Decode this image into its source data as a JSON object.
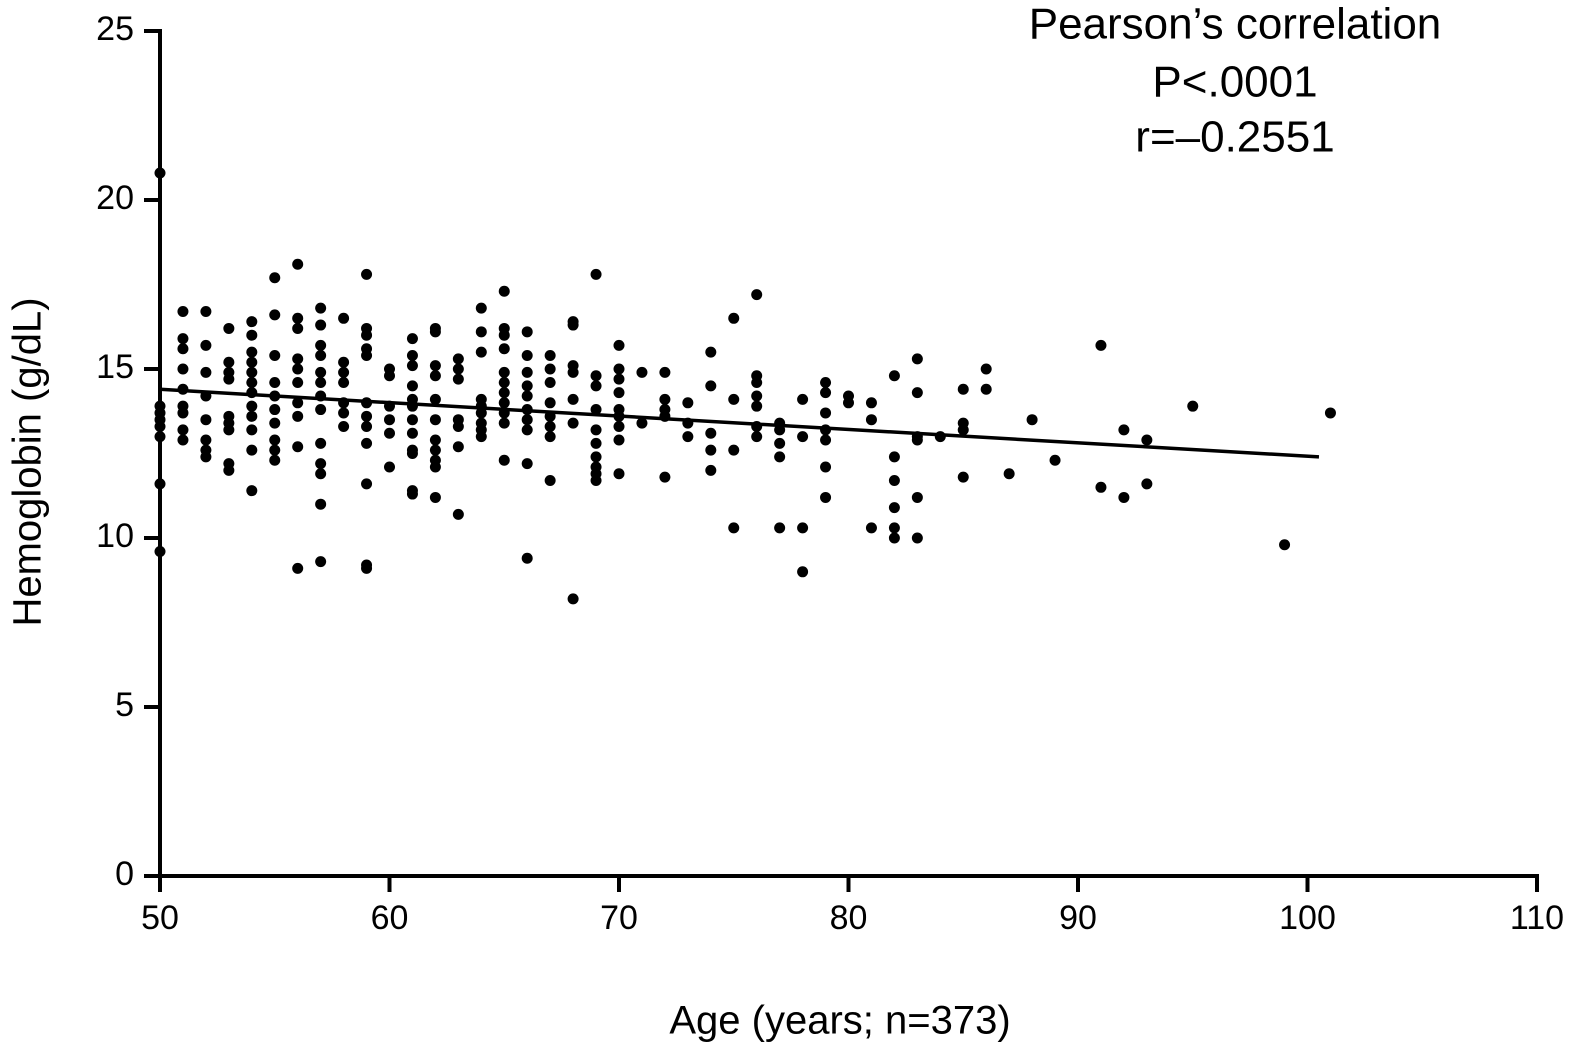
{
  "chart_data": {
    "type": "scatter",
    "annotations": [
      "Pearson’s correlation",
      "P<.0001",
      "r=–0.2551"
    ],
    "x_label": "Age (years; n=373)",
    "y_label": "Hemoglobin (g/dL)",
    "xlim": [
      50,
      110
    ],
    "xticks": [
      50,
      60,
      70,
      80,
      90,
      100,
      110
    ],
    "ylim": [
      0,
      25
    ],
    "yticks": [
      0,
      5,
      10,
      15,
      20,
      25
    ],
    "color": "#000000",
    "series": [
      {
        "x": [
          50,
          50,
          50,
          50,
          50,
          50,
          50,
          50,
          51,
          51,
          51,
          51,
          51,
          51,
          51,
          51,
          51,
          52,
          52,
          52,
          52,
          52,
          52,
          52,
          52,
          53,
          53,
          53,
          53,
          53,
          53,
          53,
          53,
          53,
          54,
          54,
          54,
          54,
          54,
          54,
          54,
          54,
          54,
          54,
          54,
          54,
          55,
          55,
          55,
          55,
          55,
          55,
          55,
          55,
          55,
          55,
          56,
          56,
          56,
          56,
          56,
          56,
          56,
          56,
          56,
          56,
          57,
          57,
          57,
          57,
          57,
          57,
          57,
          57,
          57,
          57,
          57,
          57,
          57,
          58,
          58,
          58,
          58,
          58,
          58,
          58,
          59,
          59,
          59,
          59,
          59,
          59,
          59,
          59,
          59,
          59,
          59,
          59,
          60,
          60,
          60,
          60,
          60,
          60,
          61,
          61,
          61,
          61,
          61,
          61,
          61,
          61,
          61,
          61,
          61,
          61,
          62,
          62,
          62,
          62,
          62,
          62,
          62,
          62,
          62,
          62,
          62,
          63,
          63,
          63,
          63,
          63,
          63,
          63,
          64,
          64,
          64,
          64,
          64,
          64,
          64,
          64,
          64,
          65,
          65,
          65,
          65,
          65,
          65,
          65,
          65,
          65,
          65,
          65,
          66,
          66,
          66,
          66,
          66,
          66,
          66,
          66,
          66,
          66,
          67,
          67,
          67,
          67,
          67,
          67,
          67,
          67,
          68,
          68,
          68,
          68,
          68,
          68,
          68,
          69,
          69,
          69,
          69,
          69,
          69,
          69,
          69,
          69,
          69,
          70,
          70,
          70,
          70,
          70,
          70,
          70,
          70,
          70,
          71,
          71,
          72,
          72,
          72,
          72,
          72,
          73,
          73,
          73,
          74,
          74,
          74,
          74,
          74,
          75,
          75,
          75,
          75,
          76,
          76,
          76,
          76,
          76,
          76,
          76,
          77,
          77,
          77,
          77,
          77,
          78,
          78,
          78,
          78,
          79,
          79,
          79,
          79,
          79,
          79,
          79,
          80,
          80,
          81,
          81,
          81,
          82,
          82,
          82,
          82,
          82,
          82,
          83,
          83,
          83,
          83,
          83,
          83,
          84,
          85,
          85,
          85,
          85,
          86,
          86,
          87,
          88,
          89,
          91,
          91,
          92,
          92,
          93,
          93,
          95,
          99,
          101
        ],
        "values": [
          20.8,
          13.9,
          13.7,
          13.5,
          13.3,
          13.0,
          11.6,
          9.6,
          16.7,
          15.9,
          15.6,
          15.0,
          14.4,
          13.9,
          13.7,
          13.2,
          12.9,
          16.7,
          15.7,
          14.9,
          14.2,
          13.5,
          12.9,
          12.6,
          12.4,
          16.2,
          15.2,
          14.9,
          14.7,
          13.6,
          13.4,
          13.2,
          12.2,
          12.0,
          16.4,
          16.0,
          15.5,
          15.2,
          14.9,
          14.6,
          14.3,
          13.9,
          13.6,
          13.2,
          12.6,
          11.4,
          17.7,
          16.6,
          15.4,
          14.6,
          14.2,
          13.8,
          13.4,
          12.9,
          12.6,
          12.3,
          18.1,
          16.5,
          16.2,
          15.3,
          15.0,
          14.6,
          14.0,
          13.6,
          12.7,
          9.1,
          16.8,
          16.3,
          15.7,
          15.4,
          14.9,
          14.6,
          14.2,
          13.8,
          12.8,
          12.2,
          11.9,
          11.0,
          9.3,
          16.5,
          15.2,
          14.9,
          14.6,
          14.0,
          13.7,
          13.3,
          17.8,
          16.2,
          16.0,
          15.6,
          15.4,
          14.0,
          13.6,
          13.3,
          12.8,
          11.6,
          9.2,
          9.1,
          15.0,
          14.8,
          13.9,
          13.5,
          13.1,
          12.1,
          15.9,
          15.4,
          15.1,
          14.5,
          14.1,
          13.9,
          13.5,
          13.1,
          12.6,
          12.5,
          11.4,
          11.3,
          16.2,
          16.1,
          15.1,
          14.8,
          14.1,
          13.5,
          12.9,
          12.6,
          12.3,
          12.1,
          11.2,
          15.3,
          15.0,
          14.7,
          13.5,
          13.3,
          12.7,
          10.7,
          16.8,
          16.1,
          15.5,
          14.1,
          13.9,
          13.7,
          13.4,
          13.2,
          13.0,
          17.3,
          16.2,
          16.0,
          15.6,
          14.9,
          14.6,
          14.3,
          14.0,
          13.7,
          13.4,
          12.3,
          16.1,
          15.4,
          14.9,
          14.5,
          14.2,
          13.8,
          13.5,
          13.2,
          12.2,
          9.4,
          15.4,
          15.0,
          14.6,
          14.0,
          13.6,
          13.3,
          13.0,
          11.7,
          16.4,
          16.3,
          15.1,
          14.9,
          14.1,
          13.4,
          8.2,
          17.8,
          14.8,
          14.5,
          13.8,
          13.2,
          12.8,
          12.4,
          12.1,
          11.9,
          11.7,
          15.7,
          15.0,
          14.7,
          14.3,
          13.8,
          13.6,
          13.3,
          12.9,
          11.9,
          14.9,
          13.4,
          14.9,
          14.1,
          13.8,
          13.6,
          11.8,
          14.0,
          13.4,
          13.0,
          15.5,
          14.5,
          13.1,
          12.6,
          12.0,
          16.5,
          14.1,
          12.6,
          10.3,
          17.2,
          14.8,
          14.6,
          14.2,
          13.9,
          13.3,
          13.0,
          13.4,
          13.2,
          12.8,
          12.4,
          10.3,
          14.1,
          13.0,
          10.3,
          9.0,
          14.6,
          14.3,
          13.7,
          13.2,
          12.9,
          12.1,
          11.2,
          14.2,
          14.0,
          14.0,
          13.5,
          10.3,
          14.8,
          12.4,
          11.7,
          10.9,
          10.3,
          10.0,
          15.3,
          14.3,
          13.0,
          12.9,
          11.2,
          10.0,
          13.0,
          14.4,
          13.4,
          13.2,
          11.8,
          15.0,
          14.4,
          11.9,
          13.5,
          12.3,
          15.7,
          11.5,
          13.2,
          11.2,
          12.9,
          11.6,
          13.9,
          9.8,
          13.7
        ]
      }
    ],
    "trend_line": {
      "x": [
        50,
        100.5
      ],
      "y": [
        14.4,
        12.4
      ]
    }
  }
}
